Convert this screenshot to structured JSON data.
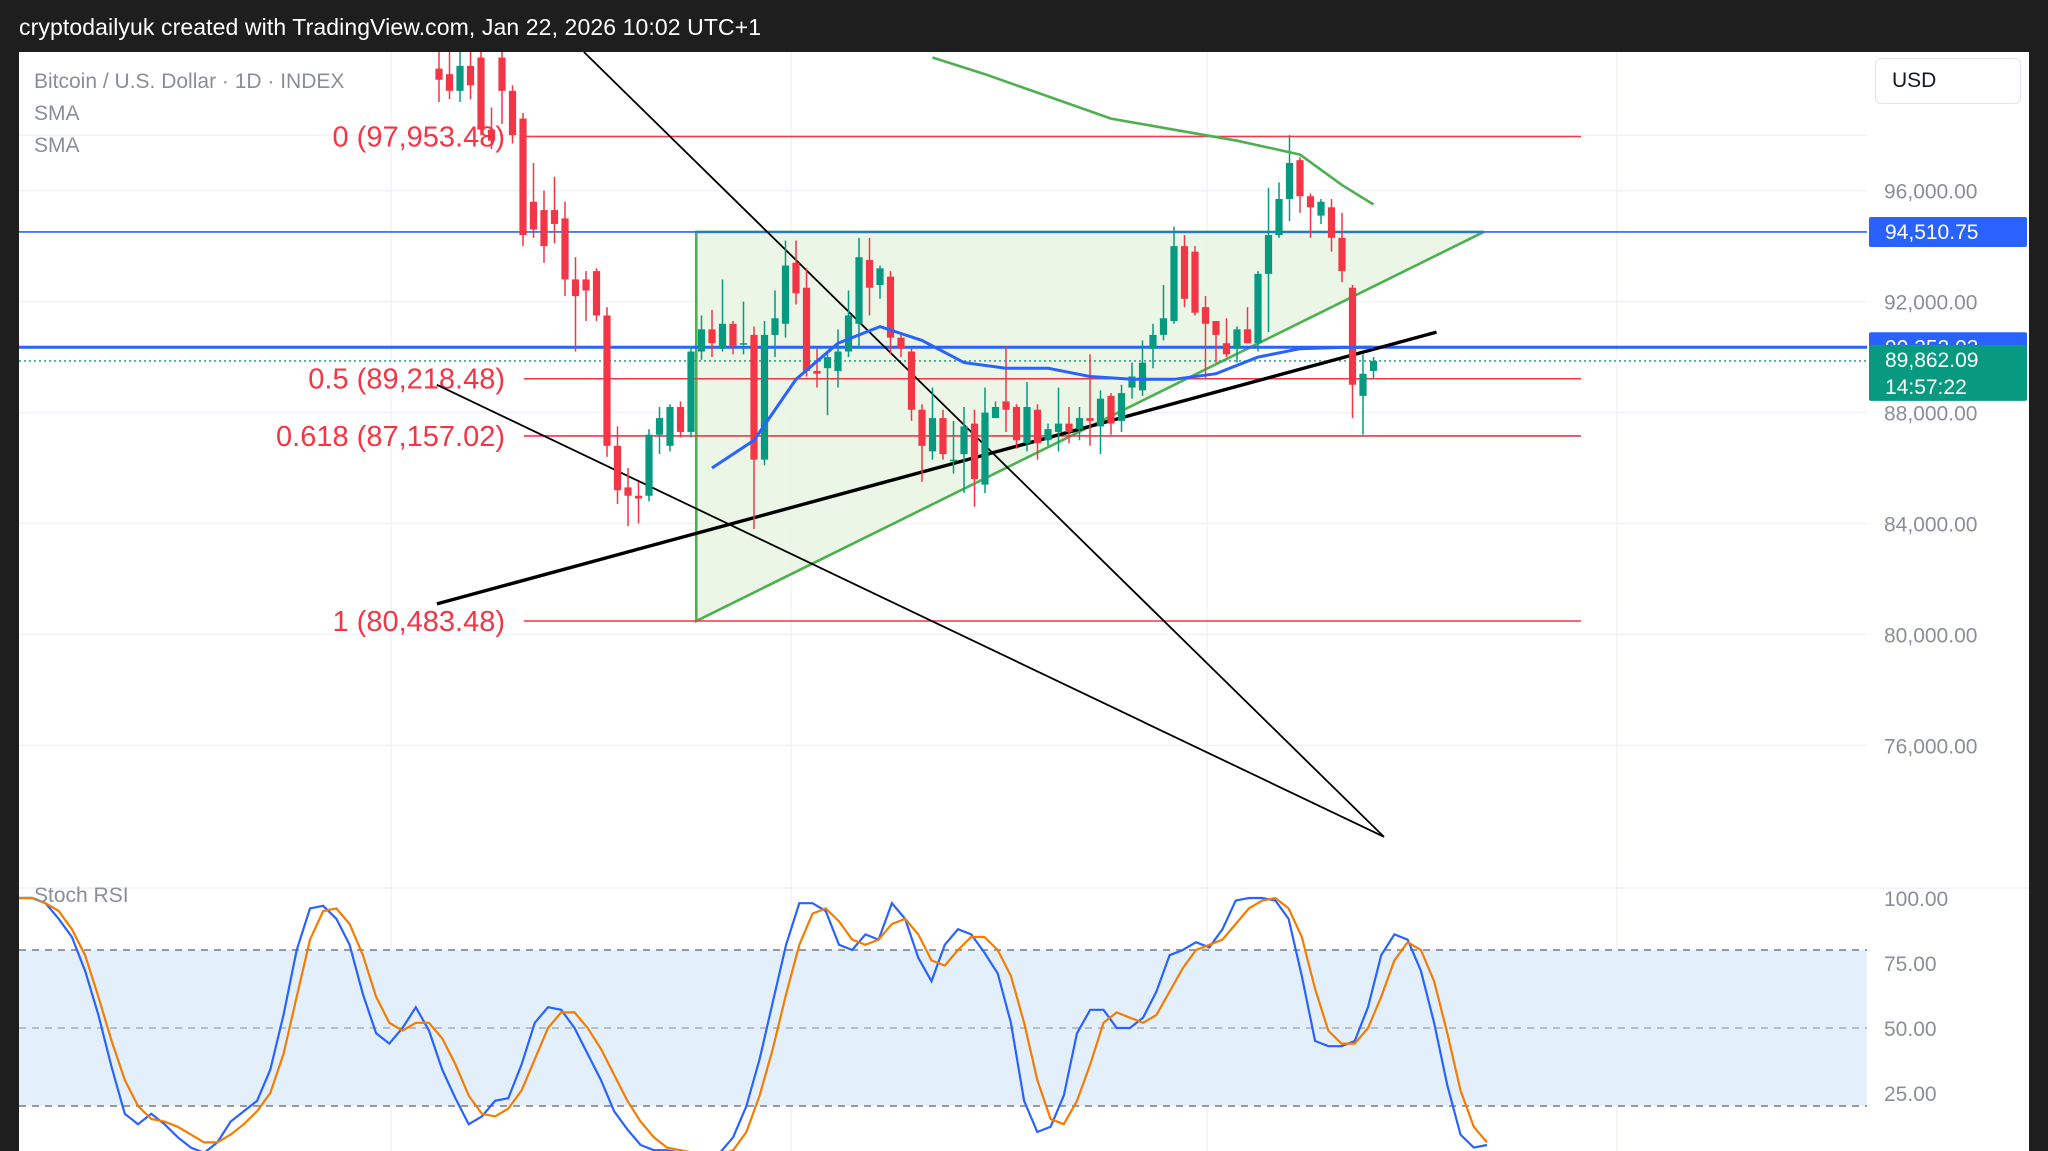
{
  "header": {
    "credit": "cryptodailyuk created with TradingView.com, Jan 22, 2026 10:02 UTC+1"
  },
  "toolbar": {
    "currency": "USD"
  },
  "legend": {
    "symbol": "Bitcoin / U.S. Dollar · 1D · INDEX",
    "indicator1": "SMA",
    "indicator2": "SMA"
  },
  "colors": {
    "up": "#089981",
    "down": "#f23645",
    "fib": "#f23645",
    "sma_fast": "#2962ff",
    "sma_slow": "#4caf50",
    "triangle_fill": "#e8f5e2",
    "triangle_stroke": "#4caf50",
    "trendline": "#000000",
    "stoch_k": "#2962ff",
    "stoch_d": "#f57c00",
    "stoch_band": "#e3f0fc",
    "price_tag_blue": "#2962ff",
    "price_tag_green": "#089981"
  },
  "chart_data": [
    {
      "type": "candlestick",
      "title": "Bitcoin / U.S. Dollar · 1D · INDEX",
      "ylim": [
        71000,
        101000
      ],
      "y_ticks": [
        "96,000.00",
        "92,000.00",
        "88,000.00",
        "84,000.00",
        "80,000.00",
        "76,000.00"
      ],
      "y_tick_values": [
        96000,
        92000,
        88000,
        84000,
        80000,
        76000
      ],
      "fib_levels": [
        {
          "label": "0 (97,953.48)",
          "value": 97953.48
        },
        {
          "label": "0.5 (89,218.48)",
          "value": 89218.48
        },
        {
          "label": "0.618 (87,157.02)",
          "value": 87157.02
        },
        {
          "label": "1 (80,483.48)",
          "value": 80483.48
        }
      ],
      "price_tags": [
        {
          "label": "94,510.75",
          "value": 94510.75,
          "color": "blue"
        },
        {
          "label": "90,352.03",
          "value": 90352.03,
          "color": "blue"
        },
        {
          "label": "89,862.09",
          "sub": "14:57:22",
          "value": 89862.09,
          "color": "green"
        }
      ],
      "horizontal_line": 94510.75,
      "sma_fast_line": 90352.03,
      "last_price": 89862.09,
      "candles": [
        {
          "o": 100400,
          "h": 101000,
          "l": 99200,
          "c": 100000
        },
        {
          "o": 100200,
          "h": 101000,
          "l": 99300,
          "c": 99600
        },
        {
          "o": 99600,
          "h": 101000,
          "l": 99200,
          "c": 100500
        },
        {
          "o": 100500,
          "h": 101000,
          "l": 99300,
          "c": 99800
        },
        {
          "o": 100800,
          "h": 101000,
          "l": 98000,
          "c": 98200
        },
        {
          "o": 98200,
          "h": 99000,
          "l": 97500,
          "c": 97800
        },
        {
          "o": 100800,
          "h": 101000,
          "l": 98400,
          "c": 99600
        },
        {
          "o": 99600,
          "h": 99800,
          "l": 97700,
          "c": 98000
        },
        {
          "o": 98600,
          "h": 98800,
          "l": 94000,
          "c": 94400
        },
        {
          "o": 95600,
          "h": 97000,
          "l": 94300,
          "c": 94600
        },
        {
          "o": 95300,
          "h": 96000,
          "l": 93400,
          "c": 94000
        },
        {
          "o": 95300,
          "h": 96500,
          "l": 94100,
          "c": 94800
        },
        {
          "o": 95000,
          "h": 95600,
          "l": 92200,
          "c": 92800
        },
        {
          "o": 92800,
          "h": 93600,
          "l": 90200,
          "c": 92200
        },
        {
          "o": 92800,
          "h": 93100,
          "l": 91300,
          "c": 92400
        },
        {
          "o": 93100,
          "h": 93200,
          "l": 91300,
          "c": 91500
        },
        {
          "o": 91500,
          "h": 91800,
          "l": 86400,
          "c": 86800
        },
        {
          "o": 86800,
          "h": 87500,
          "l": 84700,
          "c": 85200
        },
        {
          "o": 85300,
          "h": 86000,
          "l": 83900,
          "c": 85000
        },
        {
          "o": 85000,
          "h": 85500,
          "l": 84000,
          "c": 84900
        },
        {
          "o": 85000,
          "h": 87400,
          "l": 84800,
          "c": 87200
        },
        {
          "o": 87200,
          "h": 88200,
          "l": 86500,
          "c": 87800
        },
        {
          "o": 86800,
          "h": 88300,
          "l": 86600,
          "c": 88200
        },
        {
          "o": 88200,
          "h": 88400,
          "l": 87100,
          "c": 87300
        },
        {
          "o": 87300,
          "h": 90400,
          "l": 87100,
          "c": 90200
        },
        {
          "o": 90200,
          "h": 91500,
          "l": 89900,
          "c": 91000
        },
        {
          "o": 91000,
          "h": 91700,
          "l": 90000,
          "c": 90500
        },
        {
          "o": 90300,
          "h": 92800,
          "l": 90200,
          "c": 91200
        },
        {
          "o": 91200,
          "h": 91300,
          "l": 90100,
          "c": 90400
        },
        {
          "o": 90500,
          "h": 92000,
          "l": 90100,
          "c": 90500
        },
        {
          "o": 90800,
          "h": 91100,
          "l": 83800,
          "c": 86300
        },
        {
          "o": 86300,
          "h": 91300,
          "l": 86100,
          "c": 90800
        },
        {
          "o": 90800,
          "h": 92400,
          "l": 90000,
          "c": 91400
        },
        {
          "o": 91200,
          "h": 94200,
          "l": 90700,
          "c": 93300
        },
        {
          "o": 93400,
          "h": 94200,
          "l": 91900,
          "c": 92300
        },
        {
          "o": 92500,
          "h": 93200,
          "l": 89300,
          "c": 89500
        },
        {
          "o": 89500,
          "h": 90300,
          "l": 88900,
          "c": 89400
        },
        {
          "o": 89600,
          "h": 90100,
          "l": 87900,
          "c": 90000
        },
        {
          "o": 89500,
          "h": 91000,
          "l": 88900,
          "c": 90200
        },
        {
          "o": 90200,
          "h": 92400,
          "l": 90000,
          "c": 91500
        },
        {
          "o": 91200,
          "h": 94300,
          "l": 90300,
          "c": 93600
        },
        {
          "o": 93500,
          "h": 94300,
          "l": 91500,
          "c": 92500
        },
        {
          "o": 92600,
          "h": 93300,
          "l": 92100,
          "c": 93200
        },
        {
          "o": 92900,
          "h": 93100,
          "l": 90100,
          "c": 90700
        },
        {
          "o": 90700,
          "h": 90800,
          "l": 90000,
          "c": 90300
        },
        {
          "o": 90200,
          "h": 90300,
          "l": 87700,
          "c": 88100
        },
        {
          "o": 88100,
          "h": 88300,
          "l": 85500,
          "c": 86800
        },
        {
          "o": 86600,
          "h": 88900,
          "l": 86300,
          "c": 87800
        },
        {
          "o": 87800,
          "h": 88100,
          "l": 86300,
          "c": 86500
        },
        {
          "o": 86300,
          "h": 87700,
          "l": 85800,
          "c": 86300
        },
        {
          "o": 86500,
          "h": 88200,
          "l": 85100,
          "c": 87500
        },
        {
          "o": 87600,
          "h": 88100,
          "l": 84600,
          "c": 85600
        },
        {
          "o": 85400,
          "h": 88900,
          "l": 85100,
          "c": 88000
        },
        {
          "o": 87800,
          "h": 88400,
          "l": 87800,
          "c": 88200
        },
        {
          "o": 88400,
          "h": 90400,
          "l": 87300,
          "c": 88100
        },
        {
          "o": 88200,
          "h": 88300,
          "l": 86700,
          "c": 87000
        },
        {
          "o": 86900,
          "h": 89100,
          "l": 86600,
          "c": 88200
        },
        {
          "o": 88100,
          "h": 88300,
          "l": 86300,
          "c": 86900
        },
        {
          "o": 87000,
          "h": 87600,
          "l": 86800,
          "c": 87400
        },
        {
          "o": 87300,
          "h": 88900,
          "l": 86600,
          "c": 87600
        },
        {
          "o": 87600,
          "h": 88200,
          "l": 86900,
          "c": 87300
        },
        {
          "o": 87400,
          "h": 88200,
          "l": 87000,
          "c": 87800
        },
        {
          "o": 87800,
          "h": 90100,
          "l": 86800,
          "c": 87700
        },
        {
          "o": 87500,
          "h": 88800,
          "l": 86500,
          "c": 88500
        },
        {
          "o": 88600,
          "h": 88700,
          "l": 87200,
          "c": 87600
        },
        {
          "o": 87700,
          "h": 89000,
          "l": 87300,
          "c": 88700
        },
        {
          "o": 88900,
          "h": 89800,
          "l": 88500,
          "c": 89300
        },
        {
          "o": 88800,
          "h": 90600,
          "l": 88600,
          "c": 89800
        },
        {
          "o": 90300,
          "h": 91200,
          "l": 89600,
          "c": 90800
        },
        {
          "o": 90800,
          "h": 92600,
          "l": 90600,
          "c": 91400
        },
        {
          "o": 91300,
          "h": 94700,
          "l": 91200,
          "c": 94000
        },
        {
          "o": 94000,
          "h": 94400,
          "l": 91800,
          "c": 92100
        },
        {
          "o": 93800,
          "h": 94000,
          "l": 91500,
          "c": 91600
        },
        {
          "o": 91800,
          "h": 92200,
          "l": 89200,
          "c": 91200
        },
        {
          "o": 91300,
          "h": 91300,
          "l": 89800,
          "c": 90800
        },
        {
          "o": 90500,
          "h": 91400,
          "l": 90000,
          "c": 90100
        },
        {
          "o": 90300,
          "h": 91100,
          "l": 89800,
          "c": 91000
        },
        {
          "o": 91000,
          "h": 91800,
          "l": 90500,
          "c": 90500
        },
        {
          "o": 90500,
          "h": 93100,
          "l": 90200,
          "c": 93000
        },
        {
          "o": 93000,
          "h": 96100,
          "l": 90900,
          "c": 94400
        },
        {
          "o": 94400,
          "h": 96300,
          "l": 94300,
          "c": 95700
        },
        {
          "o": 95700,
          "h": 98000,
          "l": 94900,
          "c": 97000
        },
        {
          "o": 97100,
          "h": 97200,
          "l": 95200,
          "c": 95800
        },
        {
          "o": 95800,
          "h": 95900,
          "l": 94300,
          "c": 95400
        },
        {
          "o": 95100,
          "h": 95700,
          "l": 94800,
          "c": 95600
        },
        {
          "o": 95400,
          "h": 95700,
          "l": 93800,
          "c": 94300
        },
        {
          "o": 94300,
          "h": 95200,
          "l": 92700,
          "c": 93100
        },
        {
          "o": 92500,
          "h": 92600,
          "l": 87800,
          "c": 89000
        },
        {
          "o": 88600,
          "h": 90100,
          "l": 87200,
          "c": 89400
        },
        {
          "o": 89500,
          "h": 90000,
          "l": 89200,
          "c": 89860
        }
      ],
      "sma_fast": [
        [
          26,
          86000
        ],
        [
          30,
          87000
        ],
        [
          34,
          89200
        ],
        [
          38,
          90500
        ],
        [
          42,
          91100
        ],
        [
          46,
          90600
        ],
        [
          50,
          89800
        ],
        [
          54,
          89600
        ],
        [
          58,
          89600
        ],
        [
          62,
          89300
        ],
        [
          66,
          89200
        ],
        [
          70,
          89200
        ],
        [
          74,
          89400
        ],
        [
          78,
          90000
        ],
        [
          82,
          90300
        ],
        [
          86,
          90350
        ],
        [
          89,
          90352
        ]
      ],
      "sma_slow": [
        [
          47,
          100800
        ],
        [
          52,
          100200
        ],
        [
          58,
          99400
        ],
        [
          64,
          98600
        ],
        [
          70,
          98200
        ],
        [
          76,
          97800
        ],
        [
          82,
          97300
        ],
        [
          86,
          96200
        ],
        [
          89,
          95500
        ]
      ],
      "trendlines": [
        {
          "x1": -0.2,
          "y1": 81100,
          "x2": 95,
          "y2": 90900
        },
        {
          "x1": -0.2,
          "y1": 89000,
          "x2": 90,
          "y2": 72700
        },
        {
          "x1": 13.8,
          "y1": 101000,
          "x2": 90,
          "y2": 72700
        }
      ],
      "triangle": {
        "apex_x": 99.5,
        "top": 94510.75,
        "left_x": 24.5,
        "bottom": 80483.48
      }
    },
    {
      "type": "line",
      "title": "Stoch RSI",
      "ylim": [
        0,
        100
      ],
      "y_ticks": [
        "100.00",
        "75.00",
        "50.00",
        "25.00"
      ],
      "y_tick_values": [
        100,
        75,
        50,
        25
      ],
      "band": [
        20,
        80
      ],
      "series": [
        {
          "name": "K",
          "values": [
            100,
            100,
            98,
            92,
            85,
            72,
            55,
            35,
            17,
            13,
            17,
            13,
            8,
            4,
            2,
            6,
            14,
            18,
            22,
            34,
            55,
            80,
            96,
            97,
            92,
            82,
            63,
            48,
            44,
            50,
            58,
            49,
            34,
            23,
            13,
            16,
            22,
            23,
            36,
            52,
            58,
            57,
            50,
            40,
            30,
            18,
            11,
            5,
            3,
            3,
            2,
            1,
            1,
            2,
            8,
            20,
            38,
            60,
            82,
            98,
            98,
            95,
            82,
            80,
            86,
            84,
            98,
            92,
            77,
            68,
            82,
            88,
            86,
            79,
            71,
            52,
            22,
            10,
            12,
            24,
            48,
            57,
            57,
            50,
            50,
            54,
            64,
            78,
            80,
            83,
            81,
            88,
            99,
            100,
            100,
            99,
            92,
            70,
            45,
            43,
            43,
            45,
            58,
            78,
            86,
            84,
            72,
            52,
            28,
            9,
            4,
            5
          ]
        },
        {
          "name": "D",
          "values": [
            100,
            100,
            98,
            95,
            88,
            78,
            62,
            45,
            30,
            20,
            15,
            14,
            12,
            9,
            6,
            6,
            9,
            13,
            18,
            25,
            40,
            62,
            84,
            95,
            96,
            90,
            78,
            62,
            52,
            49,
            52,
            52,
            46,
            36,
            24,
            17,
            16,
            19,
            26,
            38,
            50,
            56,
            56,
            50,
            42,
            32,
            22,
            14,
            8,
            4,
            3,
            2,
            1,
            1,
            3,
            10,
            24,
            42,
            63,
            82,
            94,
            96,
            91,
            84,
            82,
            84,
            90,
            92,
            86,
            76,
            74,
            80,
            85,
            85,
            80,
            70,
            52,
            30,
            15,
            13,
            22,
            36,
            52,
            56,
            54,
            52,
            55,
            64,
            73,
            80,
            82,
            84,
            90,
            96,
            99,
            100,
            96,
            85,
            65,
            49,
            44,
            44,
            50,
            62,
            76,
            83,
            80,
            68,
            48,
            26,
            12,
            6
          ]
        }
      ]
    }
  ]
}
